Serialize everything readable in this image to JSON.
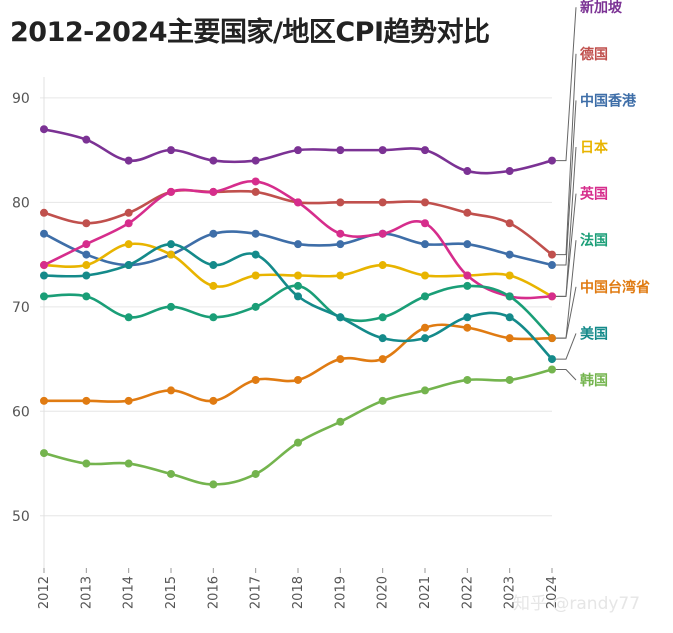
{
  "page": {
    "title": "2012-2024主要国家/地区CPI趋势对比",
    "watermark": "知乎 @randy77"
  },
  "chart_data": {
    "type": "line",
    "title": "2012-2024主要国家/地区CPI趋势对比",
    "x": [
      2012,
      2013,
      2014,
      2015,
      2016,
      2017,
      2018,
      2019,
      2020,
      2021,
      2022,
      2023,
      2024
    ],
    "ylim": [
      45,
      92
    ],
    "yticks": [
      50,
      60,
      70,
      80,
      90
    ],
    "grid": true,
    "legend": "right, end-of-line labels",
    "series": [
      {
        "name": "新加坡",
        "color": "#7b3294",
        "values": [
          87,
          86,
          84,
          85,
          84,
          84,
          85,
          85,
          85,
          85,
          83,
          83,
          84
        ]
      },
      {
        "name": "德国",
        "color": "#c0504d",
        "values": [
          79,
          78,
          79,
          81,
          81,
          81,
          80,
          80,
          80,
          80,
          79,
          78,
          75
        ]
      },
      {
        "name": "中国香港",
        "color": "#3e6ea8",
        "values": [
          77,
          75,
          74,
          75,
          77,
          77,
          76,
          76,
          77,
          76,
          76,
          75,
          74
        ]
      },
      {
        "name": "日本",
        "color": "#e8b400",
        "values": [
          74,
          74,
          76,
          75,
          72,
          73,
          73,
          73,
          74,
          73,
          73,
          73,
          71
        ]
      },
      {
        "name": "英国",
        "color": "#d62d8c",
        "values": [
          74,
          76,
          78,
          81,
          81,
          82,
          80,
          77,
          77,
          78,
          73,
          71,
          71
        ]
      },
      {
        "name": "法国",
        "color": "#1a9e77",
        "values": [
          71,
          71,
          69,
          70,
          69,
          70,
          72,
          69,
          69,
          71,
          72,
          71,
          67
        ]
      },
      {
        "name": "中国台湾省",
        "color": "#e07b12",
        "values": [
          61,
          61,
          61,
          62,
          61,
          63,
          63,
          65,
          65,
          68,
          68,
          67,
          67
        ]
      },
      {
        "name": "美国",
        "color": "#148a8a",
        "values": [
          73,
          73,
          74,
          76,
          74,
          75,
          71,
          69,
          67,
          67,
          69,
          69,
          65
        ]
      },
      {
        "name": "韩国",
        "color": "#74b44e",
        "values": [
          56,
          55,
          55,
          54,
          53,
          54,
          57,
          59,
          61,
          62,
          63,
          63,
          64
        ]
      }
    ]
  }
}
